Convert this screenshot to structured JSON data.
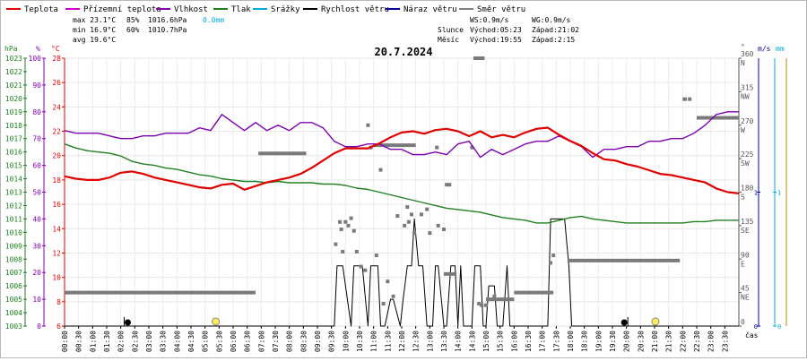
{
  "chart_data": {
    "type": "line",
    "title": "20.7.2024",
    "xlabel": "čas",
    "legend": [
      {
        "name": "Teplota",
        "color": "#e00000"
      },
      {
        "name": "Přízemní teplota",
        "color": "#cc00cc"
      },
      {
        "name": "Vlhkost",
        "color": "#8000b0"
      },
      {
        "name": "Tlak",
        "color": "#208020"
      },
      {
        "name": "Srážky",
        "color": "#00aadd"
      },
      {
        "name": "Rychlost větru",
        "color": "#000000"
      },
      {
        "name": "Náraz větru",
        "color": "#0000a0"
      },
      {
        "name": "Směr větru",
        "color": "#808080"
      }
    ],
    "stats": {
      "max_temp": "max 23.1°C",
      "max_hum": "85%",
      "max_press": "1016.6hPa",
      "rain": "0.0mm",
      "min_temp": "min 16.9°C",
      "min_hum": "60%",
      "min_press": "1010.7hPa",
      "avg_temp": "avg 19.6°C"
    },
    "info": {
      "ws": "WS:0.9m/s",
      "wg": "WG:0.9m/s",
      "sun_label": "Slunce",
      "sun_rise": "Východ:05:23",
      "sun_set": "Západ:21:02",
      "moon_label": "Měsíc",
      "moon_rise": "Východ:19:55",
      "moon_set": "Západ:2:15"
    },
    "axes": {
      "hpa_label": "hPa",
      "hpa_ticks": [
        "1003",
        "1004",
        "1005",
        "1006",
        "1007",
        "1008",
        "1009",
        "1010",
        "1011",
        "1012",
        "1013",
        "1014",
        "1015",
        "1016",
        "1017",
        "1018",
        "1019",
        "1020",
        "1021",
        "1022",
        "1023"
      ],
      "hpa_range": [
        1003,
        1023
      ],
      "pct_label": "%",
      "pct_ticks": [
        "0",
        "10",
        "20",
        "30",
        "40",
        "50",
        "60",
        "70",
        "80",
        "90",
        "100"
      ],
      "pct_range": [
        0,
        100
      ],
      "temp_label": "°C",
      "temp_ticks": [
        "6",
        "8",
        "10",
        "12",
        "14",
        "16",
        "18",
        "20",
        "22",
        "24",
        "26",
        "28"
      ],
      "temp_range": [
        6,
        28
      ],
      "dir_label": "°",
      "dir_ticks": [
        {
          "deg": 0,
          "deg_label": "0",
          "card": ""
        },
        {
          "deg": 45,
          "deg_label": "45",
          "card": "NE"
        },
        {
          "deg": 90,
          "deg_label": "90",
          "card": "E"
        },
        {
          "deg": 135,
          "deg_label": "135",
          "card": "SE"
        },
        {
          "deg": 180,
          "deg_label": "180",
          "card": "S"
        },
        {
          "deg": 225,
          "deg_label": "225",
          "card": "SW"
        },
        {
          "deg": 270,
          "deg_label": "270",
          "card": "W"
        },
        {
          "deg": 315,
          "deg_label": "315",
          "card": "NW"
        },
        {
          "deg": 360,
          "deg_label": "360",
          "card": "N"
        }
      ],
      "ms_label": "m/s",
      "ms_ticks": [
        "0",
        "1"
      ],
      "ms_range": [
        0,
        2.0
      ],
      "mm_label": "mm",
      "mm_ticks": [
        "0",
        "1"
      ],
      "mm_range": [
        0,
        2.0
      ],
      "x_ticks": [
        "00:00",
        "00:30",
        "01:00",
        "01:30",
        "02:00",
        "02:30",
        "03:00",
        "03:30",
        "04:00",
        "04:30",
        "05:00",
        "05:30",
        "06:00",
        "06:30",
        "07:00",
        "07:30",
        "08:00",
        "08:30",
        "09:00",
        "09:30",
        "10:00",
        "10:30",
        "11:00",
        "11:30",
        "12:00",
        "12:30",
        "13:00",
        "13:30",
        "14:00",
        "14:30",
        "15:00",
        "15:30",
        "16:00",
        "16:30",
        "17:00",
        "17:30",
        "18:00",
        "18:30",
        "19:00",
        "19:30",
        "20:00",
        "20:30",
        "21:00",
        "21:30",
        "22:00",
        "22:30",
        "23:00",
        "23:30"
      ]
    },
    "series": [
      {
        "name": "Teplota",
        "unit": "°C",
        "x": [
          0.0,
          0.4,
          0.8,
          1.2,
          1.6,
          2.0,
          2.4,
          2.8,
          3.2,
          3.6,
          4.0,
          4.4,
          4.8,
          5.2,
          5.6,
          6.0,
          6.4,
          6.8,
          7.2,
          7.6,
          8.0,
          8.4,
          8.8,
          9.2,
          9.6,
          10.0,
          10.4,
          10.8,
          11.2,
          11.6,
          12.0,
          12.4,
          12.8,
          13.2,
          13.6,
          14.0,
          14.4,
          14.8,
          15.2,
          15.6,
          16.0,
          16.4,
          16.8,
          17.2,
          17.6,
          18.0,
          18.4,
          18.8,
          19.2,
          19.6,
          20.0,
          20.4,
          20.8,
          21.2,
          21.6,
          22.0,
          22.4,
          22.8,
          23.2,
          23.6,
          24.0
        ],
        "values": [
          18.3,
          18.1,
          18.0,
          18.0,
          18.2,
          18.6,
          18.7,
          18.5,
          18.2,
          18.0,
          17.8,
          17.6,
          17.4,
          17.3,
          17.6,
          17.7,
          17.2,
          17.5,
          17.8,
          18.0,
          18.2,
          18.5,
          19.0,
          19.6,
          20.2,
          20.6,
          20.6,
          20.6,
          21.0,
          21.5,
          21.9,
          22.0,
          21.8,
          22.1,
          22.2,
          22.0,
          21.6,
          22.0,
          21.5,
          21.7,
          21.5,
          21.9,
          22.2,
          22.3,
          21.7,
          21.2,
          20.8,
          20.2,
          19.7,
          19.6,
          19.3,
          19.1,
          18.8,
          18.5,
          18.4,
          18.2,
          18.0,
          17.8,
          17.3,
          17.0,
          16.9
        ]
      },
      {
        "name": "Vlhkost",
        "unit": "%",
        "x": [
          0.0,
          0.4,
          0.8,
          1.2,
          1.6,
          2.0,
          2.4,
          2.8,
          3.2,
          3.6,
          4.0,
          4.4,
          4.8,
          5.2,
          5.6,
          6.0,
          6.4,
          6.8,
          7.2,
          7.6,
          8.0,
          8.4,
          8.8,
          9.2,
          9.6,
          10.0,
          10.4,
          10.8,
          11.2,
          11.6,
          12.0,
          12.4,
          12.8,
          13.2,
          13.6,
          14.0,
          14.4,
          14.8,
          15.2,
          15.6,
          16.0,
          16.4,
          16.8,
          17.2,
          17.6,
          18.0,
          18.4,
          18.8,
          19.2,
          19.6,
          20.0,
          20.4,
          20.8,
          21.2,
          21.6,
          22.0,
          22.4,
          22.8,
          23.2,
          23.6,
          24.0
        ],
        "values": [
          73,
          72,
          72,
          72,
          71,
          70,
          70,
          71,
          71,
          72,
          72,
          72,
          74,
          73,
          79,
          76,
          73,
          76,
          73,
          75,
          73,
          76,
          76,
          74,
          69,
          67,
          67,
          68,
          68,
          66,
          66,
          64,
          64,
          65,
          64,
          68,
          69,
          63,
          66,
          64,
          66,
          68,
          69,
          69,
          71,
          69,
          67,
          63,
          66,
          66,
          67,
          67,
          69,
          69,
          70,
          70,
          72,
          75,
          79,
          80,
          80
        ]
      },
      {
        "name": "Tlak",
        "unit": "hPa",
        "x": [
          0.0,
          0.4,
          0.8,
          1.2,
          1.6,
          2.0,
          2.4,
          2.8,
          3.2,
          3.6,
          4.0,
          4.4,
          4.8,
          5.2,
          5.6,
          6.0,
          6.4,
          6.8,
          7.2,
          7.6,
          8.0,
          8.4,
          8.8,
          9.2,
          9.6,
          10.0,
          10.4,
          10.8,
          11.2,
          11.6,
          12.0,
          12.4,
          12.8,
          13.2,
          13.6,
          14.0,
          14.4,
          14.8,
          15.2,
          15.6,
          16.0,
          16.4,
          16.8,
          17.2,
          17.6,
          18.0,
          18.4,
          18.8,
          19.2,
          19.6,
          20.0,
          20.4,
          20.8,
          21.2,
          21.6,
          22.0,
          22.4,
          22.8,
          23.2,
          23.6,
          24.0
        ],
        "values": [
          1016.6,
          1016.3,
          1016.1,
          1016.0,
          1015.9,
          1015.7,
          1015.3,
          1015.1,
          1015.0,
          1014.8,
          1014.7,
          1014.5,
          1014.3,
          1014.2,
          1014.0,
          1013.9,
          1013.8,
          1013.8,
          1013.7,
          1013.8,
          1013.7,
          1013.7,
          1013.7,
          1013.6,
          1013.6,
          1013.5,
          1013.3,
          1013.2,
          1013.0,
          1012.8,
          1012.6,
          1012.4,
          1012.2,
          1012.0,
          1011.8,
          1011.7,
          1011.6,
          1011.5,
          1011.3,
          1011.1,
          1011.0,
          1010.9,
          1010.7,
          1010.7,
          1010.9,
          1011.1,
          1011.2,
          1011.0,
          1010.9,
          1010.8,
          1010.7,
          1010.7,
          1010.7,
          1010.7,
          1010.7,
          1010.7,
          1010.8,
          1010.8,
          1010.9,
          1010.9,
          1010.9
        ]
      },
      {
        "name": "Rychlost větru",
        "unit": "m/s",
        "x": [
          0.0,
          9.6,
          9.7,
          9.9,
          10.2,
          10.3,
          10.6,
          10.8,
          10.9,
          11.15,
          11.25,
          11.4,
          11.6,
          11.7,
          11.95,
          12.05,
          12.2,
          12.35,
          12.45,
          12.6,
          12.75,
          12.9,
          13.1,
          13.2,
          13.3,
          13.5,
          13.6,
          13.75,
          13.9,
          14.0,
          14.1,
          14.2,
          14.5,
          14.6,
          14.8,
          14.9,
          15.0,
          15.1,
          15.3,
          15.4,
          15.6,
          15.75,
          15.85,
          17.2,
          17.3,
          17.45,
          17.55,
          17.8,
          17.95,
          18.05,
          24.0
        ],
        "values": [
          0,
          0,
          0.45,
          0.45,
          0,
          0.45,
          0.45,
          0,
          0.45,
          0.45,
          0,
          0,
          0.2,
          0.2,
          0,
          0.2,
          0.45,
          0.45,
          0.8,
          0.45,
          0.45,
          0,
          0,
          0.45,
          0.45,
          0,
          0,
          0.45,
          0.45,
          0,
          0.45,
          0,
          0,
          0.45,
          0.45,
          0,
          0,
          0.3,
          0.3,
          0,
          0,
          0.45,
          0,
          0,
          0.8,
          0.8,
          0.8,
          0.8,
          0.45,
          0,
          0
        ]
      },
      {
        "name": "Směr větru",
        "unit": "°",
        "segments": [
          {
            "x": [
              0.0,
              6.8
            ],
            "deg": 45
          },
          {
            "x": [
              6.9,
              8.6
            ],
            "deg": 232
          },
          {
            "x": [
              11.0,
              12.5
            ],
            "deg": 243
          },
          {
            "x": [
              13.5,
              13.95
            ],
            "deg": 70
          },
          {
            "x": [
              14.55,
              14.95
            ],
            "deg": 360
          },
          {
            "x": [
              15.0,
              16.0
            ],
            "deg": 36
          },
          {
            "x": [
              16.0,
              17.4
            ],
            "deg": 45
          },
          {
            "x": [
              17.9,
              21.9
            ],
            "deg": 88
          },
          {
            "x": [
              22.0,
              22.15
            ],
            "deg": 305
          },
          {
            "x": [
              22.5,
              24.0
            ],
            "deg": 280
          }
        ],
        "points": [
          [
            9.65,
            110
          ],
          [
            9.8,
            140
          ],
          [
            9.85,
            130
          ],
          [
            9.9,
            100
          ],
          [
            10.0,
            140
          ],
          [
            10.1,
            135
          ],
          [
            10.2,
            145
          ],
          [
            10.3,
            128
          ],
          [
            10.4,
            100
          ],
          [
            10.55,
            80
          ],
          [
            10.7,
            75
          ],
          [
            10.8,
            270
          ],
          [
            10.9,
            240
          ],
          [
            11.1,
            95
          ],
          [
            11.25,
            210
          ],
          [
            11.35,
            30
          ],
          [
            11.5,
            60
          ],
          [
            11.7,
            40
          ],
          [
            11.85,
            148
          ],
          [
            12.1,
            135
          ],
          [
            12.2,
            160
          ],
          [
            12.25,
            140
          ],
          [
            12.35,
            150
          ],
          [
            12.45,
            125
          ],
          [
            12.7,
            150
          ],
          [
            12.9,
            157
          ],
          [
            13.0,
            125
          ],
          [
            13.25,
            240
          ],
          [
            13.3,
            135
          ],
          [
            13.5,
            130
          ],
          [
            13.6,
            190
          ],
          [
            13.7,
            190
          ],
          [
            14.5,
            240
          ],
          [
            14.75,
            30
          ],
          [
            14.85,
            28
          ],
          [
            15.0,
            28
          ],
          [
            15.3,
            40
          ],
          [
            17.3,
            85
          ],
          [
            17.4,
            95
          ],
          [
            22.25,
            305
          ]
        ]
      },
      {
        "name": "Srážky",
        "unit": "mm",
        "values": [
          0
        ]
      }
    ],
    "events": {
      "sunrise_x": 5.38,
      "sunset_x": 21.03,
      "moonrise_x": 19.92,
      "moonset_x": 2.25
    }
  }
}
